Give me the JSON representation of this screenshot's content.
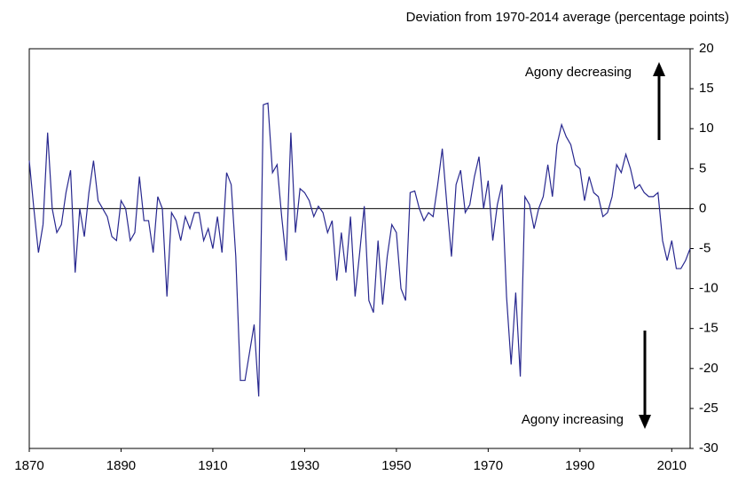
{
  "chart_data": {
    "type": "line",
    "subtitle": "Deviation from 1970-2014 average (percentage points)",
    "annotations": [
      "Agony decreasing",
      "Agony increasing"
    ],
    "x": [
      1870,
      1871,
      1872,
      1873,
      1874,
      1875,
      1876,
      1877,
      1878,
      1879,
      1880,
      1881,
      1882,
      1883,
      1884,
      1885,
      1886,
      1887,
      1888,
      1889,
      1890,
      1891,
      1892,
      1893,
      1894,
      1895,
      1896,
      1897,
      1898,
      1899,
      1900,
      1901,
      1902,
      1903,
      1904,
      1905,
      1906,
      1907,
      1908,
      1909,
      1910,
      1911,
      1912,
      1913,
      1914,
      1915,
      1916,
      1917,
      1918,
      1919,
      1920,
      1921,
      1922,
      1923,
      1924,
      1925,
      1926,
      1927,
      1928,
      1929,
      1930,
      1931,
      1932,
      1933,
      1934,
      1935,
      1936,
      1937,
      1938,
      1939,
      1940,
      1941,
      1942,
      1943,
      1944,
      1945,
      1946,
      1947,
      1948,
      1949,
      1950,
      1951,
      1952,
      1953,
      1954,
      1955,
      1956,
      1957,
      1958,
      1959,
      1960,
      1961,
      1962,
      1963,
      1964,
      1965,
      1966,
      1967,
      1968,
      1969,
      1970,
      1971,
      1972,
      1973,
      1974,
      1975,
      1976,
      1977,
      1978,
      1979,
      1980,
      1981,
      1982,
      1983,
      1984,
      1985,
      1986,
      1987,
      1988,
      1989,
      1990,
      1991,
      1992,
      1993,
      1994,
      1995,
      1996,
      1997,
      1998,
      1999,
      2000,
      2001,
      2002,
      2003,
      2004,
      2005,
      2006,
      2007,
      2008,
      2009,
      2010,
      2011,
      2012,
      2013,
      2014
    ],
    "values": [
      6,
      0,
      -5.5,
      -2,
      9.5,
      0,
      -3,
      -2,
      2,
      4.8,
      -8,
      0,
      -3.5,
      2,
      6,
      1,
      0,
      -1,
      -3.5,
      -4,
      1,
      0,
      -4,
      -3,
      4,
      -1.5,
      -1.5,
      -5.5,
      1.5,
      0,
      -11,
      -0.5,
      -1.5,
      -4,
      -1,
      -2.5,
      -0.5,
      -0.5,
      -4,
      -2.5,
      -5,
      -1,
      -5.5,
      4.5,
      3,
      -6,
      -21.5,
      -21.5,
      -18,
      -14.5,
      -23.5,
      13,
      13.2,
      4.5,
      5.5,
      -1,
      -6.5,
      9.5,
      -3,
      2.5,
      2,
      1,
      -1,
      0.3,
      -0.5,
      -3,
      -1.5,
      -9,
      -3,
      -8,
      -1,
      -11,
      -5.5,
      0.3,
      -11.5,
      -13,
      -4,
      -12,
      -6,
      -2,
      -3,
      -10,
      -11.5,
      2,
      2.2,
      0,
      -1.5,
      -0.5,
      -1,
      3,
      7.5,
      0.5,
      -6,
      3,
      4.8,
      -0.5,
      0.5,
      4,
      6.5,
      0,
      3.5,
      -4,
      0.5,
      3,
      -11,
      -19.5,
      -10.5,
      -21,
      1.5,
      0.5,
      -2.5,
      0,
      1.5,
      5.5,
      1.5,
      8,
      10.5,
      9,
      8,
      5.5,
      5,
      1,
      4,
      2,
      1.5,
      -1,
      -0.5,
      1.5,
      5.5,
      4.5,
      6.8,
      5,
      2.5,
      3,
      2,
      1.5,
      1.5,
      2,
      -4,
      -6.5,
      -4,
      -7.5,
      -7.5,
      -6.5,
      -5
    ],
    "color": "#28288f",
    "xlim": [
      1870,
      2014
    ],
    "xticks": [
      1870,
      1890,
      1910,
      1930,
      1950,
      1970,
      1990,
      2010
    ],
    "ylim": [
      -30,
      20
    ],
    "yticks": [
      -30,
      -25,
      -20,
      -15,
      -10,
      -5,
      0,
      5,
      10,
      15,
      20
    ],
    "grid": false
  }
}
